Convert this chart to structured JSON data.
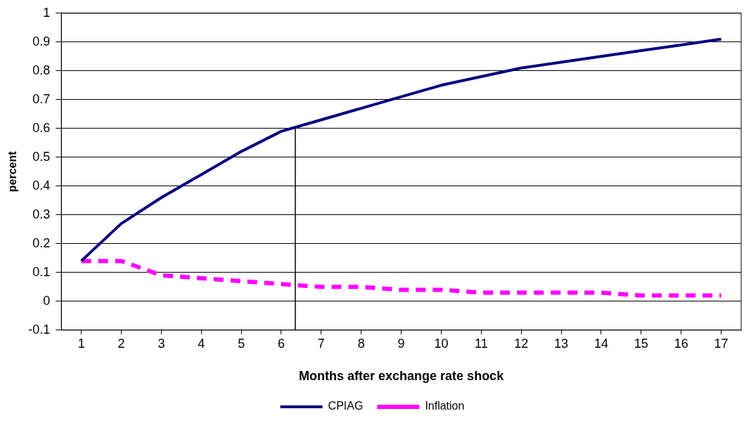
{
  "chart_data": {
    "type": "line",
    "xlabel": "Months after exchange rate shock",
    "ylabel": "percent",
    "x": [
      1,
      2,
      3,
      4,
      5,
      6,
      7,
      8,
      9,
      10,
      11,
      12,
      13,
      14,
      15,
      16,
      17
    ],
    "xlim": [
      0.5,
      17.5
    ],
    "xticks": [
      1,
      2,
      3,
      4,
      5,
      6,
      7,
      8,
      9,
      10,
      11,
      12,
      13,
      14,
      15,
      16,
      17
    ],
    "ylim": [
      -0.1,
      1
    ],
    "yticks": [
      -0.1,
      0,
      0.1,
      0.2,
      0.3,
      0.4,
      0.5,
      0.6,
      0.7,
      0.8,
      0.9,
      1
    ],
    "grid": "y",
    "legend": "bottom",
    "marker": "none",
    "series": [
      {
        "name": "CPIAG",
        "color": "#000080",
        "line_style": "solid",
        "values": [
          0.14,
          0.27,
          0.36,
          0.44,
          0.52,
          0.59,
          0.63,
          0.67,
          0.71,
          0.75,
          0.78,
          0.81,
          0.83,
          0.85,
          0.87,
          0.89,
          0.91
        ]
      },
      {
        "name": "Inflation",
        "color": "#ff00ff",
        "line_style": "dashed",
        "values": [
          0.14,
          0.14,
          0.09,
          0.08,
          0.07,
          0.06,
          0.05,
          0.05,
          0.04,
          0.04,
          0.03,
          0.03,
          0.03,
          0.03,
          0.02,
          0.02,
          0.02
        ]
      }
    ],
    "ref_lines": [
      {
        "axis": "x",
        "value": 6.35,
        "color": "#000000"
      }
    ]
  }
}
